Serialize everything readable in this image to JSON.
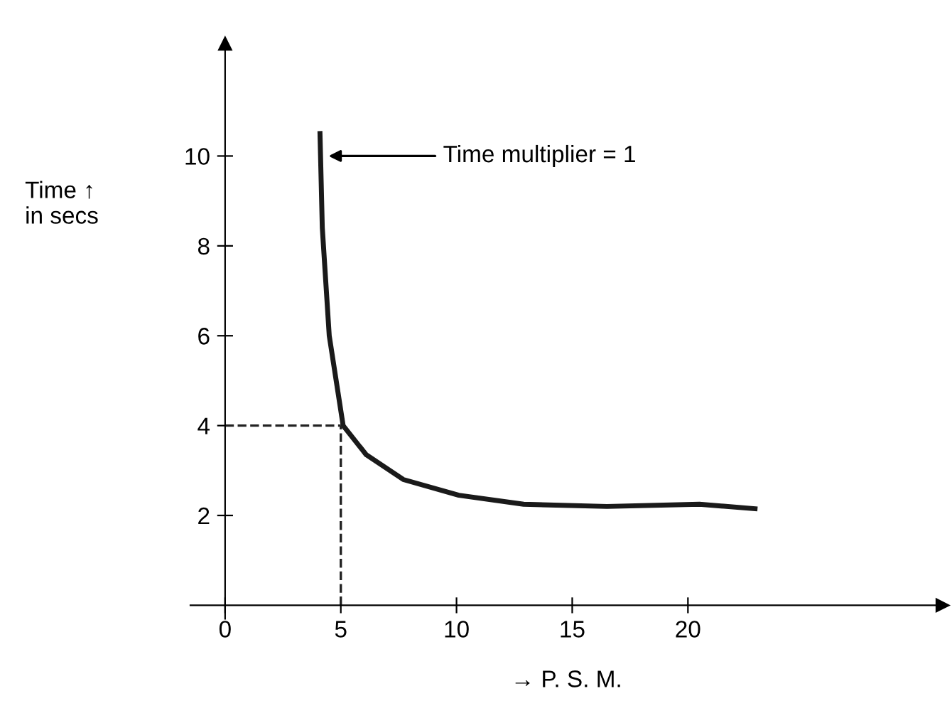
{
  "chart_data": {
    "type": "line",
    "xlabel": "→ P. S. M.",
    "ylabel": "Time ↑\nin secs",
    "series": [
      {
        "color": "#1a1a1a",
        "x": [
          4.1,
          4.2,
          4.5,
          5.1,
          6.1,
          7.7,
          10.1,
          12.9,
          16.5,
          20.5,
          22.9
        ],
        "values": [
          10.5,
          8.4,
          6.0,
          4.0,
          3.35,
          2.8,
          2.45,
          2.25,
          2.2,
          2.25,
          2.15
        ]
      }
    ],
    "xlim": [
      -1.5,
      31
    ],
    "ylim": [
      -0.3,
      12.5
    ],
    "xticks": [
      0,
      5,
      10,
      15,
      20
    ],
    "yticks": [
      2,
      4,
      6,
      8,
      10
    ],
    "ref_lines": [
      {
        "axis": "x",
        "value": 5,
        "line_style": "dashed"
      },
      {
        "axis": "y",
        "value": 4,
        "line_style": "dashed"
      }
    ],
    "annotations": [
      {
        "text": "Time multiplier = 1",
        "x": 4.3,
        "y": 10
      }
    ],
    "grid": false,
    "legend": false,
    "marker": "none",
    "line_style": "solid"
  }
}
